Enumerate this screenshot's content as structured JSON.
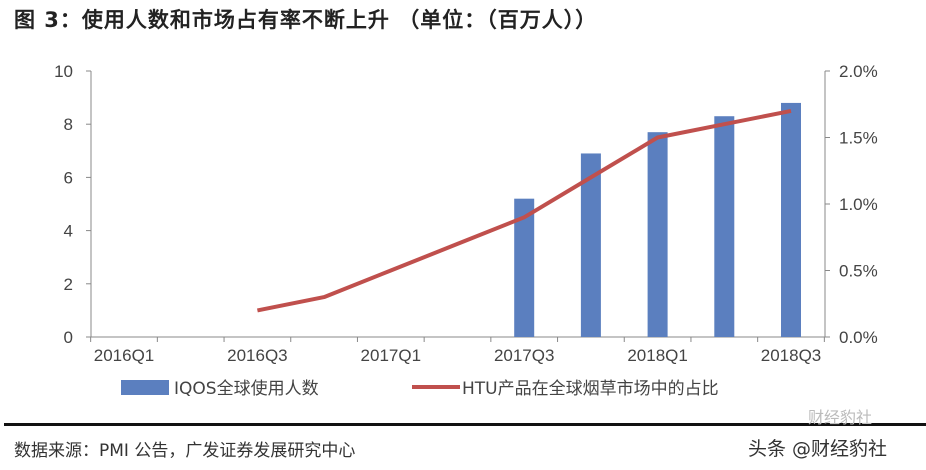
{
  "chart_data": {
    "type": "bar+line",
    "title": "图 3：使用人数和市场占有率不断上升 （单位：（百万人））",
    "categories": [
      "2016Q1",
      "2016Q2",
      "2016Q3",
      "2016Q4",
      "2017Q1",
      "2017Q2",
      "2017Q3",
      "2017Q4",
      "2018Q1",
      "2018Q2",
      "2018Q3"
    ],
    "x_tick_labels": [
      "2016Q1",
      "2016Q3",
      "2017Q1",
      "2017Q3",
      "2018Q1",
      "2018Q3"
    ],
    "series": [
      {
        "name": "IQOS全球使用人数",
        "type": "bar",
        "axis": "left",
        "color": "#5b7fbf",
        "values": [
          null,
          null,
          null,
          null,
          null,
          null,
          5.2,
          6.9,
          7.7,
          8.3,
          8.8
        ]
      },
      {
        "name": "HTU产品在全球烟草市场中的占比",
        "type": "line",
        "axis": "right",
        "color": "#c0504d",
        "values": [
          null,
          null,
          0.2,
          0.3,
          0.5,
          0.7,
          0.9,
          1.2,
          1.5,
          1.6,
          1.7
        ]
      }
    ],
    "ylim_left": [
      0,
      10
    ],
    "yticks_left": [
      "0",
      "2",
      "4",
      "6",
      "8",
      "10"
    ],
    "ylim_right": [
      0,
      2.0
    ],
    "yticks_right": [
      "0.0%",
      "0.5%",
      "1.0%",
      "1.5%",
      "2.0%"
    ],
    "grid": false,
    "legend": "bottom"
  },
  "source": "数据来源：PMI 公告，广发证券发展研究中心",
  "watermark": {
    "faint": "财经豹社",
    "main": "头条 @财经豹社"
  }
}
